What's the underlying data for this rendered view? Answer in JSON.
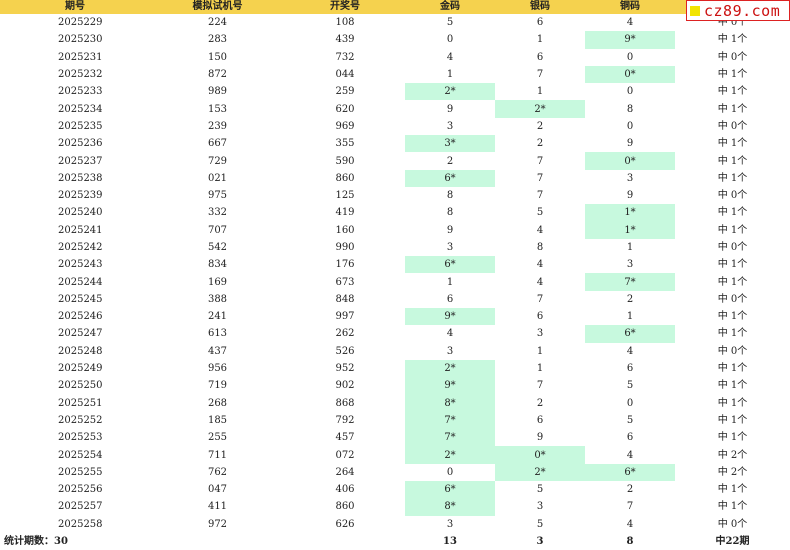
{
  "headers": [
    "期号",
    "模拟试机号",
    "开奖号",
    "金码",
    "银码",
    "铜码",
    ""
  ],
  "logo_text": "cz89.com",
  "hit_color": "#c7f9de",
  "header_color": "#f5d24e",
  "rows": [
    {
      "period": "2025229",
      "sim": "224",
      "draw": "108",
      "gold": "5",
      "silver": "6",
      "bronze": "4",
      "result": "中 0个",
      "hits": []
    },
    {
      "period": "2025230",
      "sim": "283",
      "draw": "439",
      "gold": "0",
      "silver": "1",
      "bronze": "9*",
      "result": "中 1个",
      "hits": [
        "bronze"
      ]
    },
    {
      "period": "2025231",
      "sim": "150",
      "draw": "732",
      "gold": "4",
      "silver": "6",
      "bronze": "0",
      "result": "中 0个",
      "hits": []
    },
    {
      "period": "2025232",
      "sim": "872",
      "draw": "044",
      "gold": "1",
      "silver": "7",
      "bronze": "0*",
      "result": "中 1个",
      "hits": [
        "bronze"
      ]
    },
    {
      "period": "2025233",
      "sim": "989",
      "draw": "259",
      "gold": "2*",
      "silver": "1",
      "bronze": "0",
      "result": "中 1个",
      "hits": [
        "gold"
      ]
    },
    {
      "period": "2025234",
      "sim": "153",
      "draw": "620",
      "gold": "9",
      "silver": "2*",
      "bronze": "8",
      "result": "中 1个",
      "hits": [
        "silver"
      ]
    },
    {
      "period": "2025235",
      "sim": "239",
      "draw": "969",
      "gold": "3",
      "silver": "2",
      "bronze": "0",
      "result": "中 0个",
      "hits": []
    },
    {
      "period": "2025236",
      "sim": "667",
      "draw": "355",
      "gold": "3*",
      "silver": "2",
      "bronze": "9",
      "result": "中 1个",
      "hits": [
        "gold"
      ]
    },
    {
      "period": "2025237",
      "sim": "729",
      "draw": "590",
      "gold": "2",
      "silver": "7",
      "bronze": "0*",
      "result": "中 1个",
      "hits": [
        "bronze"
      ]
    },
    {
      "period": "2025238",
      "sim": "021",
      "draw": "860",
      "gold": "6*",
      "silver": "7",
      "bronze": "3",
      "result": "中 1个",
      "hits": [
        "gold"
      ]
    },
    {
      "period": "2025239",
      "sim": "975",
      "draw": "125",
      "gold": "8",
      "silver": "7",
      "bronze": "9",
      "result": "中 0个",
      "hits": []
    },
    {
      "period": "2025240",
      "sim": "332",
      "draw": "419",
      "gold": "8",
      "silver": "5",
      "bronze": "1*",
      "result": "中 1个",
      "hits": [
        "bronze"
      ]
    },
    {
      "period": "2025241",
      "sim": "707",
      "draw": "160",
      "gold": "9",
      "silver": "4",
      "bronze": "1*",
      "result": "中 1个",
      "hits": [
        "bronze"
      ]
    },
    {
      "period": "2025242",
      "sim": "542",
      "draw": "990",
      "gold": "3",
      "silver": "8",
      "bronze": "1",
      "result": "中 0个",
      "hits": []
    },
    {
      "period": "2025243",
      "sim": "834",
      "draw": "176",
      "gold": "6*",
      "silver": "4",
      "bronze": "3",
      "result": "中 1个",
      "hits": [
        "gold"
      ]
    },
    {
      "period": "2025244",
      "sim": "169",
      "draw": "673",
      "gold": "1",
      "silver": "4",
      "bronze": "7*",
      "result": "中 1个",
      "hits": [
        "bronze"
      ]
    },
    {
      "period": "2025245",
      "sim": "388",
      "draw": "848",
      "gold": "6",
      "silver": "7",
      "bronze": "2",
      "result": "中 0个",
      "hits": []
    },
    {
      "period": "2025246",
      "sim": "241",
      "draw": "997",
      "gold": "9*",
      "silver": "6",
      "bronze": "1",
      "result": "中 1个",
      "hits": [
        "gold"
      ]
    },
    {
      "period": "2025247",
      "sim": "613",
      "draw": "262",
      "gold": "4",
      "silver": "3",
      "bronze": "6*",
      "result": "中 1个",
      "hits": [
        "bronze"
      ]
    },
    {
      "period": "2025248",
      "sim": "437",
      "draw": "526",
      "gold": "3",
      "silver": "1",
      "bronze": "4",
      "result": "中 0个",
      "hits": []
    },
    {
      "period": "2025249",
      "sim": "956",
      "draw": "952",
      "gold": "2*",
      "silver": "1",
      "bronze": "6",
      "result": "中 1个",
      "hits": [
        "gold"
      ]
    },
    {
      "period": "2025250",
      "sim": "719",
      "draw": "902",
      "gold": "9*",
      "silver": "7",
      "bronze": "5",
      "result": "中 1个",
      "hits": [
        "gold"
      ]
    },
    {
      "period": "2025251",
      "sim": "268",
      "draw": "868",
      "gold": "8*",
      "silver": "2",
      "bronze": "0",
      "result": "中 1个",
      "hits": [
        "gold"
      ]
    },
    {
      "period": "2025252",
      "sim": "185",
      "draw": "792",
      "gold": "7*",
      "silver": "6",
      "bronze": "5",
      "result": "中 1个",
      "hits": [
        "gold"
      ]
    },
    {
      "period": "2025253",
      "sim": "255",
      "draw": "457",
      "gold": "7*",
      "silver": "9",
      "bronze": "6",
      "result": "中 1个",
      "hits": [
        "gold"
      ]
    },
    {
      "period": "2025254",
      "sim": "711",
      "draw": "072",
      "gold": "2*",
      "silver": "0*",
      "bronze": "4",
      "result": "中 2个",
      "hits": [
        "gold",
        "silver"
      ]
    },
    {
      "period": "2025255",
      "sim": "762",
      "draw": "264",
      "gold": "0",
      "silver": "2*",
      "bronze": "6*",
      "result": "中 2个",
      "hits": [
        "silver",
        "bronze"
      ]
    },
    {
      "period": "2025256",
      "sim": "047",
      "draw": "406",
      "gold": "6*",
      "silver": "5",
      "bronze": "2",
      "result": "中 1个",
      "hits": [
        "gold"
      ]
    },
    {
      "period": "2025257",
      "sim": "411",
      "draw": "860",
      "gold": "8*",
      "silver": "3",
      "bronze": "7",
      "result": "中 1个",
      "hits": [
        "gold"
      ]
    },
    {
      "period": "2025258",
      "sim": "972",
      "draw": "626",
      "gold": "3",
      "silver": "5",
      "bronze": "4",
      "result": "中 0个",
      "hits": []
    }
  ],
  "footer": {
    "label": "统计期数：30",
    "gold_total": "13",
    "silver_total": "3",
    "bronze_total": "8",
    "result_total": "中22期"
  }
}
